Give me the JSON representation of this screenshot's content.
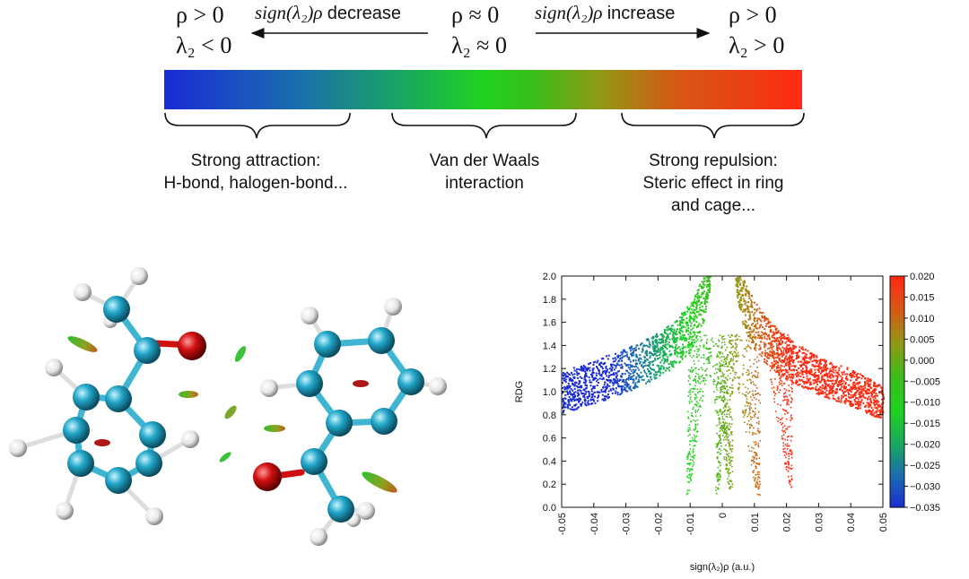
{
  "scale": {
    "left": {
      "line1": "ρ > 0",
      "line2": "λ₂ < 0"
    },
    "center": {
      "line1": "ρ ≈ 0",
      "line2": "λ₂ ≈ 0"
    },
    "right": {
      "line1": "ρ > 0",
      "line2": "λ₂ > 0"
    },
    "sign_expr": "sign(λ₂)ρ",
    "decrease_label": "decrease",
    "increase_label": "increase",
    "colors": [
      "#1a2bd4",
      "#1a6bb0",
      "#19a95e",
      "#1fd31f",
      "#3bbd19",
      "#8f9a16",
      "#d45a14",
      "#ff2a12"
    ]
  },
  "regions": {
    "attraction": {
      "line1": "Strong attraction:",
      "line2": "H-bond, halogen-bond..."
    },
    "vdw": {
      "line1": "Van der Waals",
      "line2": "interaction"
    },
    "repulsion": {
      "line1": "Strong repulsion:",
      "line2": "Steric effect in ring",
      "line3": "and cage..."
    }
  },
  "molecule": {
    "atom_colors": {
      "carbon": "#22a6c8",
      "hydrogen": "#e6e6e6",
      "oxygen": "#d01010"
    }
  },
  "chart_data": {
    "type": "scatter",
    "xlabel": "sign(λ₂)ρ (a.u.)",
    "ylabel": "RDG",
    "xlim": [
      -0.05,
      0.05
    ],
    "ylim": [
      0.0,
      2.0
    ],
    "xticks": [
      "-0.05",
      "-0.04",
      "-0.03",
      "-0.02",
      "-0.01",
      "0",
      "0.01",
      "0.02",
      "0.03",
      "0.04",
      "0.05"
    ],
    "yticks": [
      "0.0",
      "0.2",
      "0.4",
      "0.6",
      "0.8",
      "1.0",
      "1.2",
      "1.4",
      "1.6",
      "1.8",
      "2.0"
    ],
    "colorbar": {
      "range": [
        -0.035,
        0.02
      ],
      "ticks": [
        "0.020",
        "0.015",
        "0.010",
        "0.005",
        "0.000",
        "−0.005",
        "−0.010",
        "−0.015",
        "−0.020",
        "−0.025",
        "−0.030",
        "−0.035"
      ]
    },
    "series": [
      {
        "x": [
          -0.05,
          -0.04,
          -0.03,
          -0.02,
          -0.015,
          -0.01,
          -0.006,
          -0.004
        ],
        "upper": [
          1.18,
          1.28,
          1.38,
          1.52,
          1.62,
          1.78,
          2.0,
          2.0
        ],
        "lower": [
          0.82,
          0.9,
          1.0,
          1.13,
          1.22,
          1.35,
          1.6,
          1.9
        ]
      },
      {
        "x": [
          0.004,
          0.006,
          0.01,
          0.015,
          0.02,
          0.03,
          0.04,
          0.05
        ],
        "upper": [
          2.0,
          2.0,
          1.78,
          1.6,
          1.48,
          1.3,
          1.2,
          1.05
        ],
        "lower": [
          1.9,
          1.6,
          1.35,
          1.2,
          1.1,
          0.98,
          0.88,
          0.76
        ]
      }
    ],
    "spikes": [
      {
        "center": -0.011,
        "min": 0.1
      },
      {
        "center": -0.002,
        "min": 0.1
      },
      {
        "center": 0.0025,
        "min": 0.15
      },
      {
        "center": 0.011,
        "min": 0.1
      },
      {
        "center": 0.021,
        "min": 0.18
      }
    ]
  }
}
